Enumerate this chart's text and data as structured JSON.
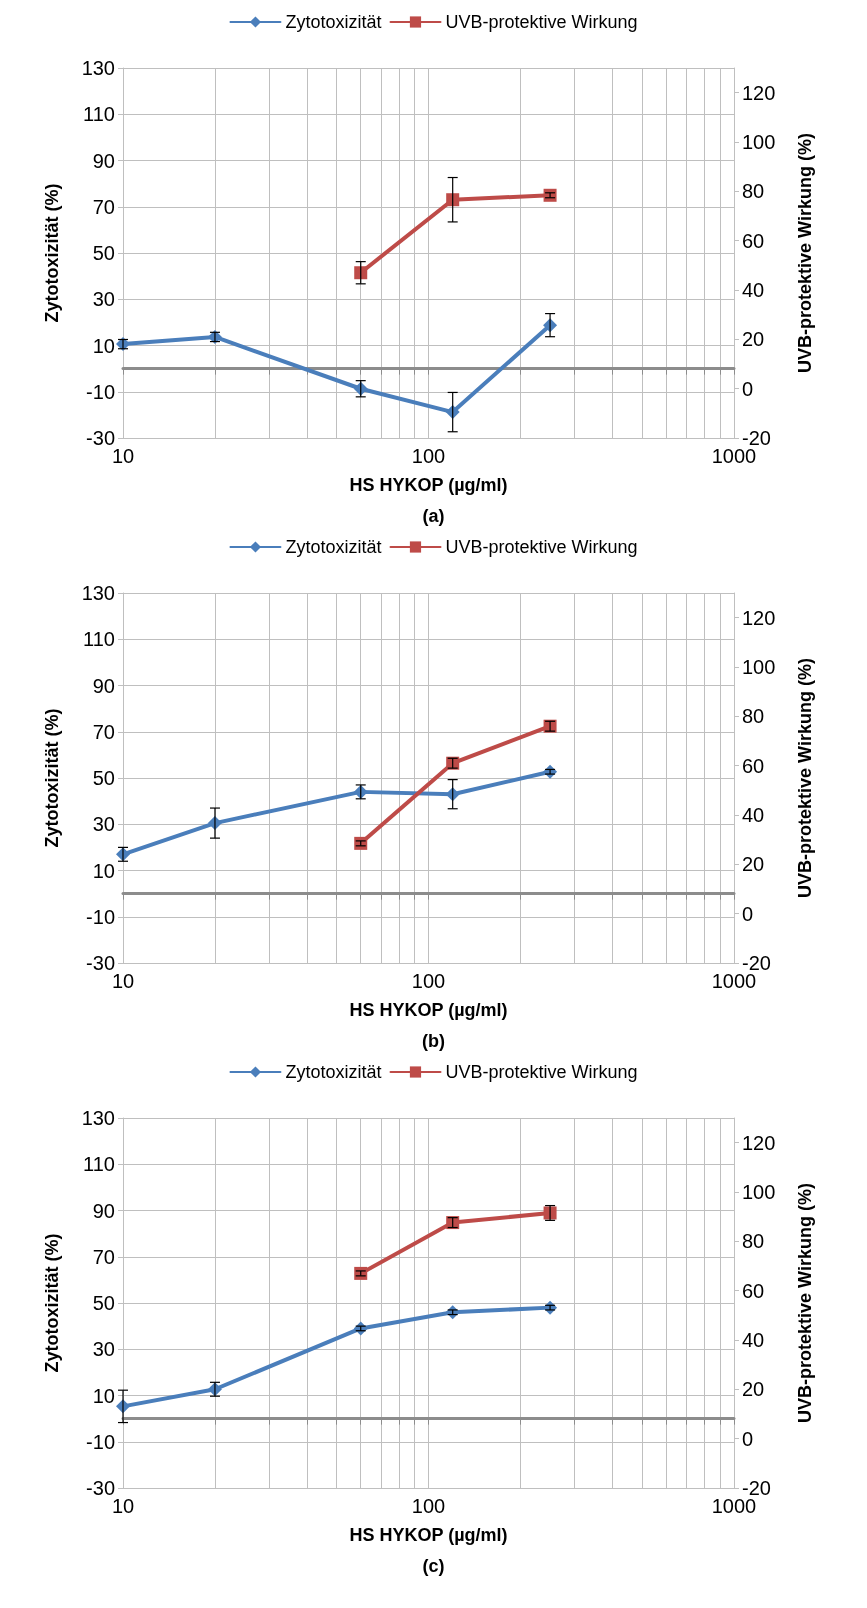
{
  "chart_data": [
    {
      "type": "line",
      "xlabel": "HS HYKOP (µg/ml)",
      "ylabel": "Zytotoxizität (%)",
      "y2label": "UVB-protektive Wirkung (%)",
      "annotations": [
        "(a)"
      ],
      "log": "x",
      "grid": true,
      "legend": "top",
      "xlim": [
        10,
        1000
      ],
      "xticks": [
        10,
        {
          "value": 20,
          "label": null
        },
        {
          "value": 30,
          "label": null
        },
        {
          "value": 40,
          "label": null
        },
        {
          "value": 50,
          "label": null
        },
        {
          "value": 60,
          "label": null
        },
        {
          "value": 70,
          "label": null
        },
        {
          "value": 80,
          "label": null
        },
        {
          "value": 90,
          "label": null
        },
        100,
        {
          "value": 200,
          "label": null
        },
        {
          "value": 300,
          "label": null
        },
        {
          "value": 400,
          "label": null
        },
        {
          "value": 500,
          "label": null
        },
        {
          "value": 600,
          "label": null
        },
        {
          "value": 700,
          "label": null
        },
        {
          "value": 800,
          "label": null
        },
        {
          "value": 900,
          "label": null
        },
        1000
      ],
      "ylim": [
        -30,
        130
      ],
      "yticks": [
        -30,
        -10,
        10,
        30,
        50,
        70,
        90,
        110,
        130
      ],
      "y2lim": [
        -20,
        130
      ],
      "y2ticks": [
        -20,
        0,
        20,
        40,
        60,
        80,
        100,
        120
      ],
      "series": [
        {
          "name": "Zytotoxizität",
          "color": "#4a7ebb",
          "marker": "diamond",
          "x": [
            10,
            20,
            60,
            120,
            250
          ],
          "values": [
            10.6,
            13.7,
            -8.7,
            -18.8,
            18.8
          ],
          "errors": [
            2,
            2,
            3.5,
            8.5,
            5
          ]
        },
        {
          "name": "UVB-protektive Wirkung",
          "color": "#be4b48",
          "marker": "square",
          "axis": "y2",
          "x": [
            60,
            120,
            250
          ],
          "values": [
            47,
            76.6,
            78.4
          ],
          "errors": [
            4.5,
            9,
            1
          ]
        }
      ]
    },
    {
      "type": "line",
      "xlabel": "HS HYKOP (µg/ml)",
      "ylabel": "Zytotoxizität (%)",
      "y2label": "UVB-protektive Wirkung (%)",
      "annotations": [
        "(b)"
      ],
      "log": "x",
      "grid": true,
      "legend": "top",
      "xlim": [
        10,
        1000
      ],
      "xticks": [
        10,
        {
          "value": 20,
          "label": null
        },
        {
          "value": 30,
          "label": null
        },
        {
          "value": 40,
          "label": null
        },
        {
          "value": 50,
          "label": null
        },
        {
          "value": 60,
          "label": null
        },
        {
          "value": 70,
          "label": null
        },
        {
          "value": 80,
          "label": null
        },
        {
          "value": 90,
          "label": null
        },
        100,
        {
          "value": 200,
          "label": null
        },
        {
          "value": 300,
          "label": null
        },
        {
          "value": 400,
          "label": null
        },
        {
          "value": 500,
          "label": null
        },
        {
          "value": 600,
          "label": null
        },
        {
          "value": 700,
          "label": null
        },
        {
          "value": 800,
          "label": null
        },
        {
          "value": 900,
          "label": null
        },
        1000
      ],
      "ylim": [
        -30,
        130
      ],
      "yticks": [
        -30,
        -10,
        10,
        30,
        50,
        70,
        90,
        110,
        130
      ],
      "y2lim": [
        -20,
        130
      ],
      "y2ticks": [
        -20,
        0,
        20,
        40,
        60,
        80,
        100,
        120
      ],
      "series": [
        {
          "name": "Zytotoxizität",
          "color": "#4a7ebb",
          "marker": "diamond",
          "x": [
            10,
            20,
            60,
            120,
            250
          ],
          "values": [
            17,
            30.5,
            44,
            43,
            52.7
          ],
          "errors": [
            3,
            6.5,
            3,
            6.3,
            1
          ]
        },
        {
          "name": "UVB-protektive Wirkung",
          "color": "#be4b48",
          "marker": "square",
          "axis": "y2",
          "x": [
            60,
            120,
            250
          ],
          "values": [
            28.5,
            61,
            76
          ],
          "errors": [
            1,
            2,
            2
          ]
        }
      ]
    },
    {
      "type": "line",
      "xlabel": "HS HYKOP (µg/ml)",
      "ylabel": "Zytotoxizität (%)",
      "y2label": "UVB-protektive Wirkung (%)",
      "annotations": [
        "(c)"
      ],
      "log": "x",
      "grid": true,
      "legend": "top",
      "xlim": [
        10,
        1000
      ],
      "xticks": [
        10,
        {
          "value": 20,
          "label": null
        },
        {
          "value": 30,
          "label": null
        },
        {
          "value": 40,
          "label": null
        },
        {
          "value": 50,
          "label": null
        },
        {
          "value": 60,
          "label": null
        },
        {
          "value": 70,
          "label": null
        },
        {
          "value": 80,
          "label": null
        },
        {
          "value": 90,
          "label": null
        },
        100,
        {
          "value": 200,
          "label": null
        },
        {
          "value": 300,
          "label": null
        },
        {
          "value": 400,
          "label": null
        },
        {
          "value": 500,
          "label": null
        },
        {
          "value": 600,
          "label": null
        },
        {
          "value": 700,
          "label": null
        },
        {
          "value": 800,
          "label": null
        },
        {
          "value": 900,
          "label": null
        },
        1000
      ],
      "ylim": [
        -30,
        130
      ],
      "yticks": [
        -30,
        -10,
        10,
        30,
        50,
        70,
        90,
        110,
        130
      ],
      "y2lim": [
        -20,
        130
      ],
      "y2ticks": [
        -20,
        0,
        20,
        40,
        60,
        80,
        100,
        120
      ],
      "series": [
        {
          "name": "Zytotoxizität",
          "color": "#4a7ebb",
          "marker": "diamond",
          "x": [
            10,
            20,
            60,
            120,
            250
          ],
          "values": [
            5.3,
            12.7,
            39,
            46,
            48
          ],
          "errors": [
            7,
            3,
            1,
            1,
            1
          ]
        },
        {
          "name": "UVB-protektive Wirkung",
          "color": "#be4b48",
          "marker": "square",
          "axis": "y2",
          "x": [
            60,
            120,
            250
          ],
          "values": [
            67,
            87.6,
            91.5
          ],
          "errors": [
            1,
            2,
            3
          ]
        }
      ]
    }
  ]
}
